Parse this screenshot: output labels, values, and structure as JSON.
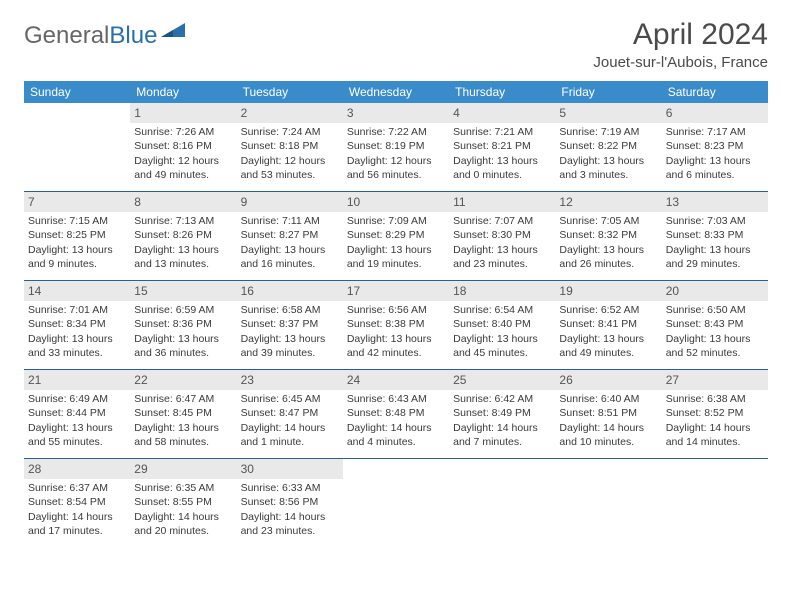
{
  "logo": {
    "text_general": "General",
    "text_blue": "Blue"
  },
  "title": "April 2024",
  "location": "Jouet-sur-l'Aubois, France",
  "colors": {
    "header_bg": "#3a8bc9",
    "header_text": "#ffffff",
    "daynum_bg": "#e9e9e9",
    "row_border": "#2b5f8f",
    "text": "#3a3a3a",
    "title_text": "#4a4a4a"
  },
  "day_names": [
    "Sunday",
    "Monday",
    "Tuesday",
    "Wednesday",
    "Thursday",
    "Friday",
    "Saturday"
  ],
  "weeks": [
    [
      {
        "n": "",
        "sunrise": "",
        "sunset": "",
        "daylight": ""
      },
      {
        "n": "1",
        "sunrise": "Sunrise: 7:26 AM",
        "sunset": "Sunset: 8:16 PM",
        "daylight": "Daylight: 12 hours and 49 minutes."
      },
      {
        "n": "2",
        "sunrise": "Sunrise: 7:24 AM",
        "sunset": "Sunset: 8:18 PM",
        "daylight": "Daylight: 12 hours and 53 minutes."
      },
      {
        "n": "3",
        "sunrise": "Sunrise: 7:22 AM",
        "sunset": "Sunset: 8:19 PM",
        "daylight": "Daylight: 12 hours and 56 minutes."
      },
      {
        "n": "4",
        "sunrise": "Sunrise: 7:21 AM",
        "sunset": "Sunset: 8:21 PM",
        "daylight": "Daylight: 13 hours and 0 minutes."
      },
      {
        "n": "5",
        "sunrise": "Sunrise: 7:19 AM",
        "sunset": "Sunset: 8:22 PM",
        "daylight": "Daylight: 13 hours and 3 minutes."
      },
      {
        "n": "6",
        "sunrise": "Sunrise: 7:17 AM",
        "sunset": "Sunset: 8:23 PM",
        "daylight": "Daylight: 13 hours and 6 minutes."
      }
    ],
    [
      {
        "n": "7",
        "sunrise": "Sunrise: 7:15 AM",
        "sunset": "Sunset: 8:25 PM",
        "daylight": "Daylight: 13 hours and 9 minutes."
      },
      {
        "n": "8",
        "sunrise": "Sunrise: 7:13 AM",
        "sunset": "Sunset: 8:26 PM",
        "daylight": "Daylight: 13 hours and 13 minutes."
      },
      {
        "n": "9",
        "sunrise": "Sunrise: 7:11 AM",
        "sunset": "Sunset: 8:27 PM",
        "daylight": "Daylight: 13 hours and 16 minutes."
      },
      {
        "n": "10",
        "sunrise": "Sunrise: 7:09 AM",
        "sunset": "Sunset: 8:29 PM",
        "daylight": "Daylight: 13 hours and 19 minutes."
      },
      {
        "n": "11",
        "sunrise": "Sunrise: 7:07 AM",
        "sunset": "Sunset: 8:30 PM",
        "daylight": "Daylight: 13 hours and 23 minutes."
      },
      {
        "n": "12",
        "sunrise": "Sunrise: 7:05 AM",
        "sunset": "Sunset: 8:32 PM",
        "daylight": "Daylight: 13 hours and 26 minutes."
      },
      {
        "n": "13",
        "sunrise": "Sunrise: 7:03 AM",
        "sunset": "Sunset: 8:33 PM",
        "daylight": "Daylight: 13 hours and 29 minutes."
      }
    ],
    [
      {
        "n": "14",
        "sunrise": "Sunrise: 7:01 AM",
        "sunset": "Sunset: 8:34 PM",
        "daylight": "Daylight: 13 hours and 33 minutes."
      },
      {
        "n": "15",
        "sunrise": "Sunrise: 6:59 AM",
        "sunset": "Sunset: 8:36 PM",
        "daylight": "Daylight: 13 hours and 36 minutes."
      },
      {
        "n": "16",
        "sunrise": "Sunrise: 6:58 AM",
        "sunset": "Sunset: 8:37 PM",
        "daylight": "Daylight: 13 hours and 39 minutes."
      },
      {
        "n": "17",
        "sunrise": "Sunrise: 6:56 AM",
        "sunset": "Sunset: 8:38 PM",
        "daylight": "Daylight: 13 hours and 42 minutes."
      },
      {
        "n": "18",
        "sunrise": "Sunrise: 6:54 AM",
        "sunset": "Sunset: 8:40 PM",
        "daylight": "Daylight: 13 hours and 45 minutes."
      },
      {
        "n": "19",
        "sunrise": "Sunrise: 6:52 AM",
        "sunset": "Sunset: 8:41 PM",
        "daylight": "Daylight: 13 hours and 49 minutes."
      },
      {
        "n": "20",
        "sunrise": "Sunrise: 6:50 AM",
        "sunset": "Sunset: 8:43 PM",
        "daylight": "Daylight: 13 hours and 52 minutes."
      }
    ],
    [
      {
        "n": "21",
        "sunrise": "Sunrise: 6:49 AM",
        "sunset": "Sunset: 8:44 PM",
        "daylight": "Daylight: 13 hours and 55 minutes."
      },
      {
        "n": "22",
        "sunrise": "Sunrise: 6:47 AM",
        "sunset": "Sunset: 8:45 PM",
        "daylight": "Daylight: 13 hours and 58 minutes."
      },
      {
        "n": "23",
        "sunrise": "Sunrise: 6:45 AM",
        "sunset": "Sunset: 8:47 PM",
        "daylight": "Daylight: 14 hours and 1 minute."
      },
      {
        "n": "24",
        "sunrise": "Sunrise: 6:43 AM",
        "sunset": "Sunset: 8:48 PM",
        "daylight": "Daylight: 14 hours and 4 minutes."
      },
      {
        "n": "25",
        "sunrise": "Sunrise: 6:42 AM",
        "sunset": "Sunset: 8:49 PM",
        "daylight": "Daylight: 14 hours and 7 minutes."
      },
      {
        "n": "26",
        "sunrise": "Sunrise: 6:40 AM",
        "sunset": "Sunset: 8:51 PM",
        "daylight": "Daylight: 14 hours and 10 minutes."
      },
      {
        "n": "27",
        "sunrise": "Sunrise: 6:38 AM",
        "sunset": "Sunset: 8:52 PM",
        "daylight": "Daylight: 14 hours and 14 minutes."
      }
    ],
    [
      {
        "n": "28",
        "sunrise": "Sunrise: 6:37 AM",
        "sunset": "Sunset: 8:54 PM",
        "daylight": "Daylight: 14 hours and 17 minutes."
      },
      {
        "n": "29",
        "sunrise": "Sunrise: 6:35 AM",
        "sunset": "Sunset: 8:55 PM",
        "daylight": "Daylight: 14 hours and 20 minutes."
      },
      {
        "n": "30",
        "sunrise": "Sunrise: 6:33 AM",
        "sunset": "Sunset: 8:56 PM",
        "daylight": "Daylight: 14 hours and 23 minutes."
      },
      {
        "n": "",
        "sunrise": "",
        "sunset": "",
        "daylight": ""
      },
      {
        "n": "",
        "sunrise": "",
        "sunset": "",
        "daylight": ""
      },
      {
        "n": "",
        "sunrise": "",
        "sunset": "",
        "daylight": ""
      },
      {
        "n": "",
        "sunrise": "",
        "sunset": "",
        "daylight": ""
      }
    ]
  ]
}
